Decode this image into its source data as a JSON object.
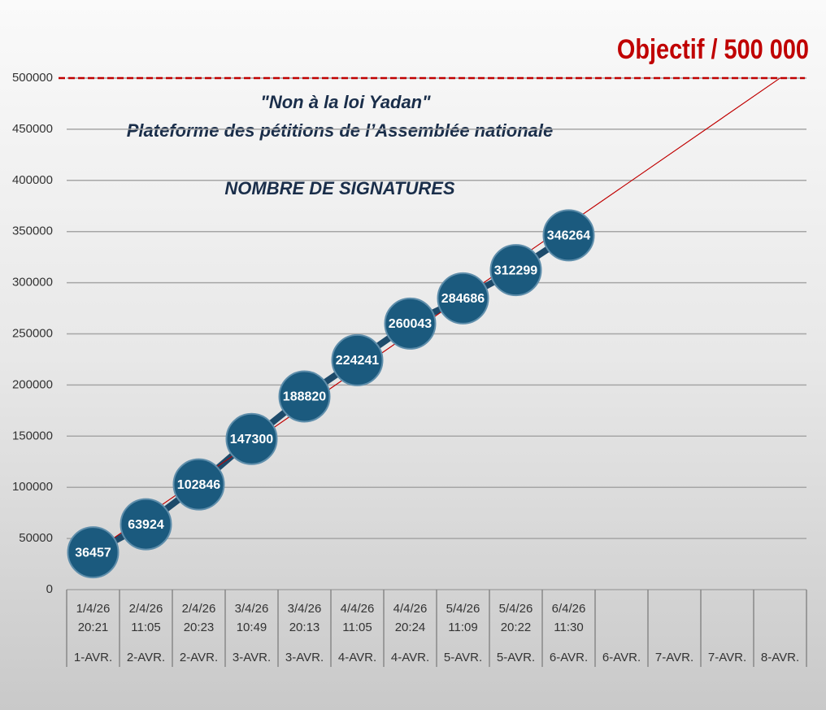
{
  "chart_data": {
    "type": "line",
    "title": "\"Non à la loi Yadan\"",
    "subtitle": "Plateforme des pétitions de l’Assemblée nationale",
    "y_label": "NOMBRE DE SIGNATURES",
    "target_label": "Objectif / 500 000",
    "target": 500000,
    "target_color": "#c00000",
    "categories": [
      "1/4/26\n20:21",
      "2/4/26\n11:05",
      "2/4/26\n20:23",
      "3/4/26\n10:49",
      "3/4/26\n20:13",
      "4/4/26\n11:05",
      "4/4/26\n20:24",
      "5/4/26\n11:09",
      "5/4/26\n20:22",
      "6/4/26\n11:30",
      null,
      null,
      null,
      null
    ],
    "day_labels": [
      "1-AVR.",
      "2-AVR.",
      "2-AVR.",
      "3-AVR.",
      "3-AVR.",
      "4-AVR.",
      "4-AVR.",
      "5-AVR.",
      "5-AVR.",
      "6-AVR.",
      "6-AVR.",
      "7-AVR.",
      "7-AVR.",
      "8-AVR."
    ],
    "series": [
      {
        "color": "#1b5a7e",
        "values": [
          36457,
          63924,
          102846,
          147300,
          188820,
          224241,
          260043,
          284686,
          312299,
          346264,
          null,
          null,
          null,
          null
        ]
      }
    ],
    "ylim": [
      0,
      500000
    ],
    "yticks": [
      0,
      50000,
      100000,
      150000,
      200000,
      250000,
      300000,
      350000,
      400000,
      450000,
      500000
    ],
    "grid": true
  }
}
